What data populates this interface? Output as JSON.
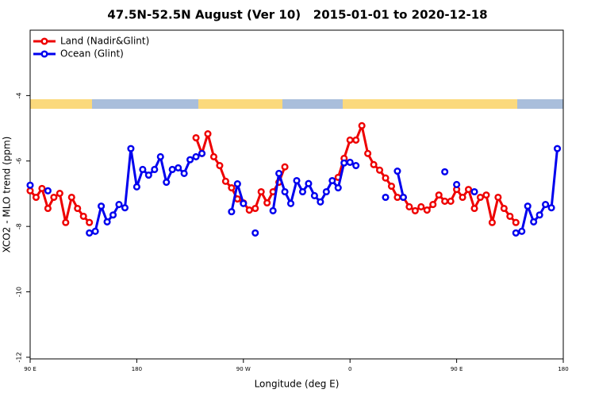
{
  "chart_data": {
    "type": "line",
    "title": "47.5N-52.5N August (Ver 10)   2015-01-01 to 2020-12-18",
    "xlabel": "Longitude (deg E)",
    "ylabel": "XCO2 - MLO trend (ppm)",
    "x": [
      90,
      95,
      100,
      105,
      110,
      115,
      120,
      125,
      130,
      135,
      140,
      145,
      150,
      155,
      160,
      165,
      170,
      175,
      180,
      185,
      190,
      195,
      200,
      205,
      210,
      215,
      220,
      225,
      230,
      235,
      240,
      245,
      250,
      255,
      260,
      265,
      270,
      275,
      280,
      285,
      290,
      295,
      300,
      305,
      310,
      315,
      320,
      325,
      330,
      335,
      340,
      345,
      350,
      355,
      360,
      365,
      370,
      375,
      380,
      385,
      390,
      395,
      400,
      405,
      410,
      415,
      420,
      425,
      430,
      435,
      440,
      445,
      450,
      455,
      460,
      465,
      470,
      475,
      480,
      485,
      490,
      495,
      500,
      505,
      510,
      515,
      520,
      525,
      530,
      535,
      540
    ],
    "series": [
      {
        "name": "Land (Nadir&Glint)",
        "color": "#ee0000",
        "values": [
          -6.91,
          -7.11,
          -6.84,
          -7.45,
          -7.11,
          -6.99,
          -7.88,
          -7.11,
          -7.45,
          -7.69,
          -7.88,
          null,
          null,
          null,
          null,
          null,
          null,
          null,
          null,
          null,
          null,
          null,
          null,
          null,
          null,
          null,
          null,
          null,
          -5.29,
          -5.77,
          -5.17,
          -5.87,
          -6.14,
          -6.62,
          -6.82,
          -7.16,
          -7.28,
          -7.5,
          -7.45,
          -6.94,
          -7.28,
          -6.94,
          -6.65,
          -6.18,
          null,
          null,
          null,
          null,
          null,
          null,
          null,
          null,
          -6.5,
          -5.92,
          -5.36,
          -5.36,
          -4.92,
          -5.77,
          -6.11,
          -6.28,
          -6.52,
          -6.77,
          -7.11,
          -7.11,
          -7.4,
          -7.52,
          -7.4,
          -7.5,
          -7.33,
          -7.04,
          -7.23,
          -7.23,
          -6.87,
          -7.11,
          -6.87,
          -7.45,
          -7.11,
          -7.04,
          -7.88,
          -7.11,
          -7.45,
          -7.69,
          -7.88,
          null,
          null,
          null,
          null,
          null,
          null,
          null,
          null
        ]
      },
      {
        "name": "Ocean (Glint)",
        "color": "#0000ee",
        "values": [
          -6.74,
          null,
          null,
          -6.91,
          null,
          null,
          null,
          null,
          null,
          null,
          -8.2,
          -8.15,
          -7.38,
          -7.86,
          -7.65,
          -7.33,
          -7.43,
          -5.62,
          -6.79,
          -6.26,
          -6.43,
          -6.26,
          -5.87,
          -6.65,
          -6.26,
          -6.21,
          -6.38,
          -5.96,
          -5.87,
          -5.77,
          null,
          null,
          null,
          null,
          -7.55,
          -6.7,
          -7.3,
          null,
          -8.2,
          null,
          null,
          -7.52,
          -6.38,
          -6.94,
          -7.3,
          -6.6,
          -6.94,
          -6.69,
          -7.06,
          -7.25,
          -6.94,
          -6.6,
          -6.82,
          -6.06,
          -6.04,
          -6.14,
          null,
          null,
          null,
          null,
          -7.11,
          null,
          -6.31,
          -7.11,
          null,
          null,
          null,
          null,
          null,
          null,
          -6.33,
          null,
          -6.72,
          null,
          null,
          -6.94,
          null,
          null,
          null,
          null,
          null,
          null,
          -8.2,
          -8.15,
          -7.38,
          -7.86,
          -7.65,
          -7.33,
          -7.43,
          -5.62,
          null
        ]
      }
    ],
    "xlim": [
      90,
      540
    ],
    "xticks": [
      {
        "value": 90,
        "label": "90 E"
      },
      {
        "value": 180,
        "label": "180"
      },
      {
        "value": 270,
        "label": "90 W"
      },
      {
        "value": 360,
        "label": "0"
      },
      {
        "value": 450,
        "label": "90 E"
      },
      {
        "value": 540,
        "label": "180"
      }
    ],
    "ylim": [
      -12.05,
      -2
    ],
    "yticks": [
      -12,
      -10,
      -8,
      -6,
      -4
    ],
    "legend": "top-left"
  }
}
